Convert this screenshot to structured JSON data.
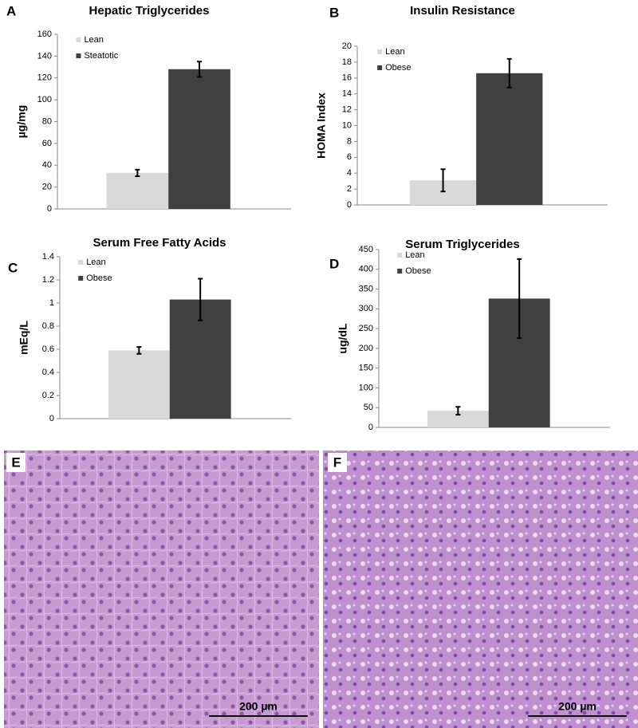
{
  "chart_data": [
    {
      "type": "bar",
      "label": "A",
      "title": "Hepatic Triglycerides",
      "y_label": "µg/mg",
      "ylim": [
        0,
        160
      ],
      "yticks": [
        0,
        20,
        40,
        60,
        80,
        100,
        120,
        140,
        160
      ],
      "series": [
        {
          "name": "Lean",
          "color": "#d9d9d9",
          "values": [
            33
          ],
          "errors": [
            3
          ]
        },
        {
          "name": "Steatotic",
          "color": "#404040",
          "values": [
            128
          ],
          "errors": [
            7
          ]
        }
      ]
    },
    {
      "type": "bar",
      "label": "B",
      "title": "Insulin Resistance",
      "y_label": "HOMA Index",
      "ylim": [
        0,
        20
      ],
      "yticks": [
        0,
        2,
        4,
        6,
        8,
        10,
        12,
        14,
        16,
        18,
        20
      ],
      "series": [
        {
          "name": "Lean",
          "color": "#d9d9d9",
          "values": [
            3.1
          ],
          "errors": [
            1.4
          ]
        },
        {
          "name": "Obese",
          "color": "#404040",
          "values": [
            16.6
          ],
          "errors": [
            1.8
          ]
        }
      ]
    },
    {
      "type": "bar",
      "label": "C",
      "title": "Serum Free Fatty Acids",
      "y_label": "mEq/L",
      "ylim": [
        0,
        1.4
      ],
      "yticks": [
        0,
        0.2,
        0.4,
        0.6,
        0.8,
        1,
        1.2,
        1.4
      ],
      "series": [
        {
          "name": "Lean",
          "color": "#d9d9d9",
          "values": [
            0.59
          ],
          "errors": [
            0.03
          ]
        },
        {
          "name": "Obese",
          "color": "#404040",
          "values": [
            1.03
          ],
          "errors": [
            0.18
          ]
        }
      ]
    },
    {
      "type": "bar",
      "label": "D",
      "title": "Serum Triglycerides",
      "y_label": "ug/dL",
      "ylim": [
        0,
        450
      ],
      "yticks": [
        0,
        50,
        100,
        150,
        200,
        250,
        300,
        350,
        400,
        450
      ],
      "series": [
        {
          "name": "Lean",
          "color": "#d9d9d9",
          "values": [
            42
          ],
          "errors": [
            10
          ]
        },
        {
          "name": "Obese",
          "color": "#404040",
          "values": [
            326
          ],
          "errors": [
            100
          ]
        }
      ]
    }
  ],
  "images": [
    {
      "label": "E",
      "scale_bar": "200 µm"
    },
    {
      "label": "F",
      "scale_bar": "200 µm"
    }
  ]
}
